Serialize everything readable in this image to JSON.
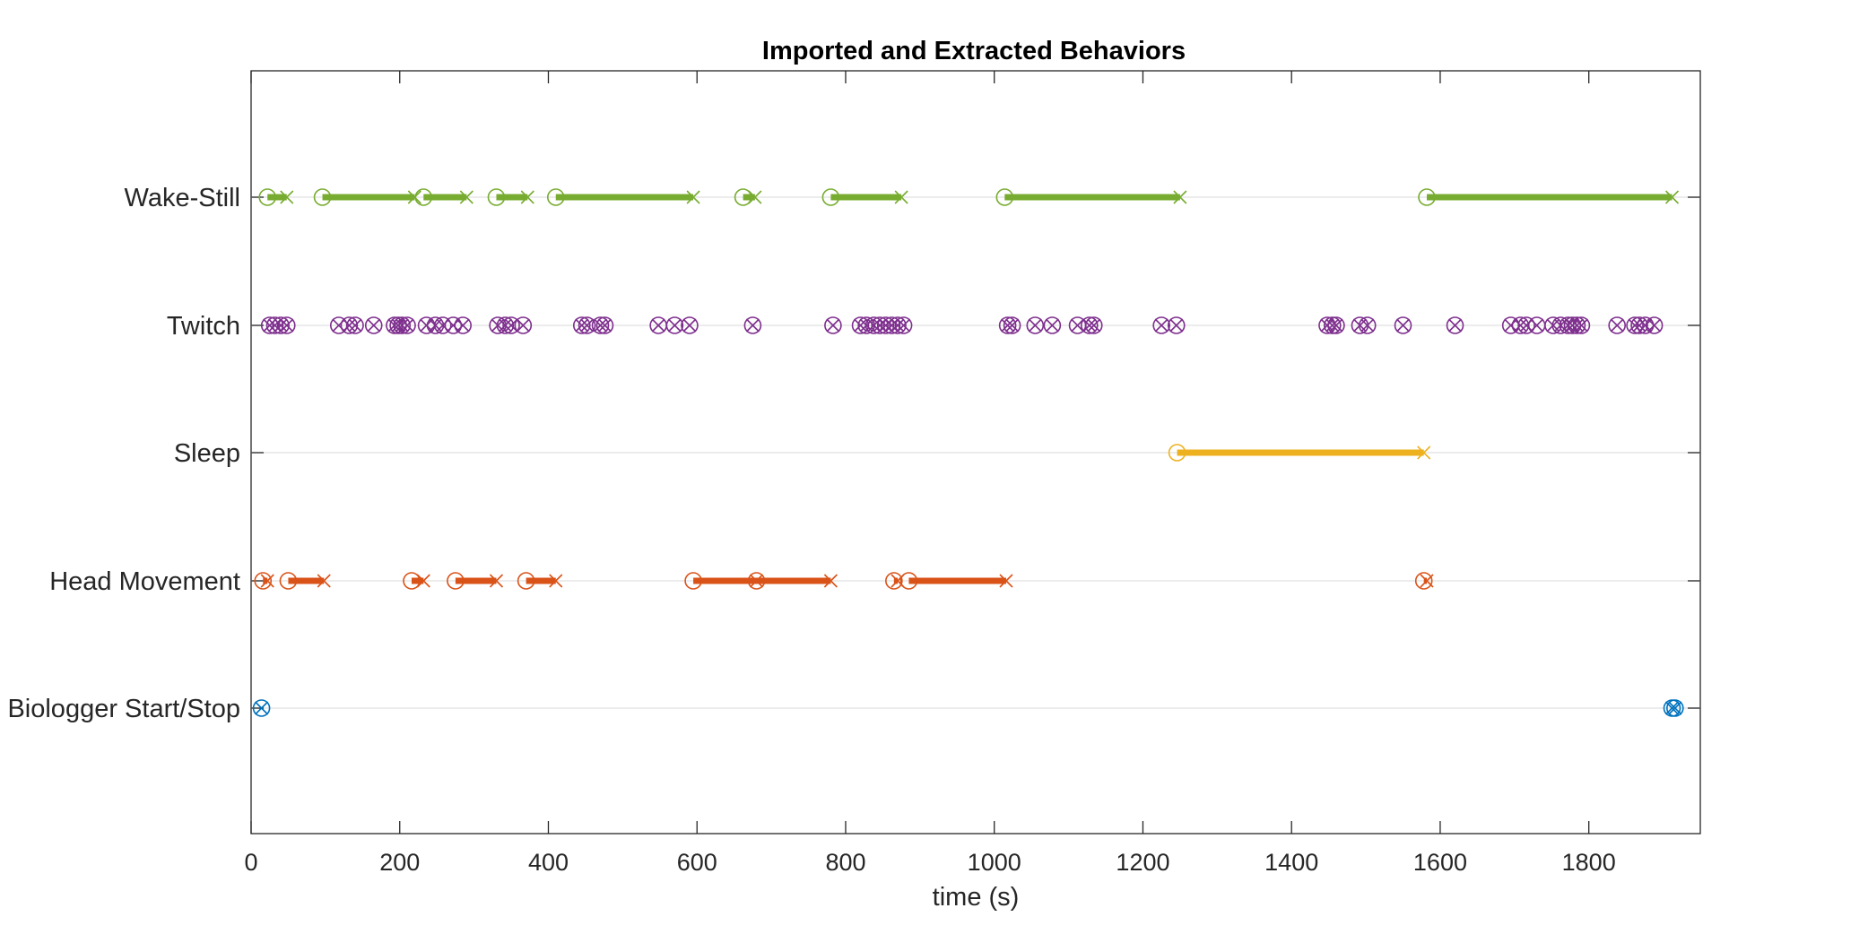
{
  "chart_data": {
    "type": "scatter",
    "title": "Imported and Extracted Behaviors",
    "xlabel": "time (s)",
    "ylabel": "",
    "xlim": [
      0,
      1950
    ],
    "xticks": [
      0,
      200,
      400,
      600,
      800,
      1000,
      1200,
      1400,
      1600,
      1800
    ],
    "categories": [
      "Wake-Still",
      "Twitch",
      "Sleep",
      "Head Movement",
      "Biologger Start/Stop"
    ],
    "grid": "horizontal lines at categories",
    "legend": "none",
    "series": [
      {
        "category": "Wake-Still",
        "color": "#77AC30",
        "events": [
          [
            22,
            48
          ],
          [
            96,
            220
          ],
          [
            232,
            290
          ],
          [
            330,
            372
          ],
          [
            410,
            595
          ],
          [
            662,
            678
          ],
          [
            780,
            875
          ],
          [
            1014,
            1250
          ],
          [
            1582,
            1912
          ]
        ]
      },
      {
        "category": "Twitch",
        "color": "#7E2F8E",
        "events": [
          [
            25,
            25
          ],
          [
            32,
            32
          ],
          [
            40,
            40
          ],
          [
            48,
            48
          ],
          [
            118,
            118
          ],
          [
            132,
            132
          ],
          [
            140,
            140
          ],
          [
            165,
            165
          ],
          [
            193,
            193
          ],
          [
            198,
            198
          ],
          [
            203,
            203
          ],
          [
            210,
            210
          ],
          [
            236,
            236
          ],
          [
            248,
            248
          ],
          [
            258,
            258
          ],
          [
            272,
            272
          ],
          [
            285,
            285
          ],
          [
            332,
            332
          ],
          [
            342,
            342
          ],
          [
            350,
            350
          ],
          [
            366,
            366
          ],
          [
            445,
            445
          ],
          [
            452,
            452
          ],
          [
            470,
            470
          ],
          [
            476,
            476
          ],
          [
            548,
            548
          ],
          [
            570,
            570
          ],
          [
            590,
            590
          ],
          [
            675,
            675
          ],
          [
            783,
            783
          ],
          [
            820,
            820
          ],
          [
            828,
            828
          ],
          [
            838,
            838
          ],
          [
            846,
            846
          ],
          [
            854,
            854
          ],
          [
            862,
            862
          ],
          [
            870,
            870
          ],
          [
            878,
            878
          ],
          [
            1018,
            1018
          ],
          [
            1024,
            1024
          ],
          [
            1055,
            1055
          ],
          [
            1078,
            1078
          ],
          [
            1112,
            1112
          ],
          [
            1128,
            1128
          ],
          [
            1134,
            1134
          ],
          [
            1225,
            1225
          ],
          [
            1245,
            1245
          ],
          [
            1448,
            1448
          ],
          [
            1455,
            1455
          ],
          [
            1460,
            1460
          ],
          [
            1492,
            1492
          ],
          [
            1502,
            1502
          ],
          [
            1550,
            1550
          ],
          [
            1620,
            1620
          ],
          [
            1695,
            1695
          ],
          [
            1708,
            1708
          ],
          [
            1716,
            1716
          ],
          [
            1730,
            1730
          ],
          [
            1752,
            1752
          ],
          [
            1762,
            1762
          ],
          [
            1772,
            1772
          ],
          [
            1778,
            1778
          ],
          [
            1784,
            1784
          ],
          [
            1790,
            1790
          ],
          [
            1838,
            1838
          ],
          [
            1862,
            1862
          ],
          [
            1868,
            1868
          ],
          [
            1876,
            1876
          ],
          [
            1888,
            1888
          ]
        ]
      },
      {
        "category": "Sleep",
        "color": "#EDB120",
        "events": [
          [
            1246,
            1578
          ]
        ]
      },
      {
        "category": "Head Movement",
        "color": "#D95319",
        "events": [
          [
            16,
            22
          ],
          [
            50,
            98
          ],
          [
            216,
            232
          ],
          [
            275,
            330
          ],
          [
            370,
            410
          ],
          [
            595,
            780
          ],
          [
            680,
            680
          ],
          [
            865,
            870
          ],
          [
            885,
            1016
          ],
          [
            1578,
            1582
          ]
        ]
      },
      {
        "category": "Biologger Start/Stop",
        "color": "#0072BD",
        "events": [
          [
            14,
            14
          ],
          [
            1912,
            1912
          ],
          [
            1916,
            1916
          ]
        ]
      }
    ]
  }
}
